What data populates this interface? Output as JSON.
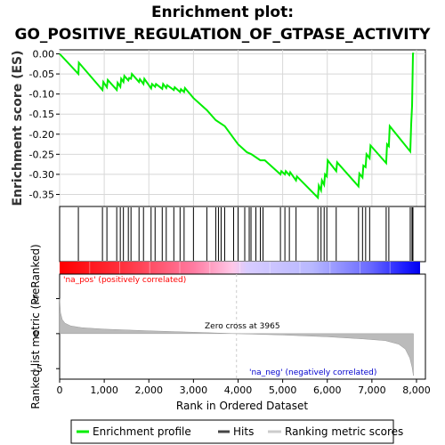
{
  "chart_data": {
    "type": "line",
    "title_line1": "Enrichment plot:",
    "title_line2": "GO_POSITIVE_REGULATION_OF_GTPASE_ACTIVITY",
    "es_panel": {
      "ylabel": "Enrichment score (ES)",
      "ylim": [
        -0.38,
        0.01
      ],
      "yticks": [
        0.0,
        -0.05,
        -0.1,
        -0.15,
        -0.2,
        -0.25,
        -0.3,
        -0.35
      ],
      "ytick_labels": [
        "0.00",
        "-0.05",
        "-0.10",
        "-0.15",
        "-0.20",
        "-0.25",
        "-0.30",
        "-0.35"
      ],
      "grid": true,
      "line_color": "#00ee00",
      "series": [
        {
          "x": [
            0,
            420,
            430,
            960,
            980,
            1060,
            1080,
            1280,
            1300,
            1360,
            1380,
            1430,
            1450,
            1540,
            1560,
            1600,
            1620,
            1780,
            1800,
            1880,
            1900,
            2050,
            2070,
            2140,
            2160,
            2300,
            2320,
            2390,
            2410,
            2560,
            2580,
            2700,
            2720,
            2790,
            2810,
            3000,
            3300,
            3500,
            3700,
            3900,
            4000,
            4200,
            4300,
            4500,
            4600,
            4800,
            4950,
            4970,
            5050,
            5070,
            5150,
            5170,
            5300,
            5320,
            5790,
            5810,
            5860,
            5880,
            5930,
            5950,
            5990,
            6010,
            6200,
            6220,
            6700,
            6720,
            6790,
            6810,
            6860,
            6880,
            6950,
            6970,
            7320,
            7340,
            7380,
            7400,
            7860,
            7880,
            7900,
            7920,
            7930
          ],
          "y": [
            0.0,
            -0.05,
            -0.022,
            -0.09,
            -0.07,
            -0.083,
            -0.065,
            -0.09,
            -0.072,
            -0.082,
            -0.062,
            -0.07,
            -0.055,
            -0.066,
            -0.06,
            -0.062,
            -0.05,
            -0.07,
            -0.063,
            -0.075,
            -0.062,
            -0.086,
            -0.075,
            -0.082,
            -0.075,
            -0.087,
            -0.075,
            -0.085,
            -0.078,
            -0.09,
            -0.083,
            -0.095,
            -0.088,
            -0.095,
            -0.085,
            -0.11,
            -0.14,
            -0.165,
            -0.18,
            -0.21,
            -0.225,
            -0.245,
            -0.25,
            -0.265,
            -0.265,
            -0.285,
            -0.3,
            -0.292,
            -0.3,
            -0.292,
            -0.302,
            -0.295,
            -0.315,
            -0.305,
            -0.358,
            -0.328,
            -0.34,
            -0.315,
            -0.326,
            -0.3,
            -0.305,
            -0.265,
            -0.292,
            -0.27,
            -0.33,
            -0.298,
            -0.308,
            -0.278,
            -0.282,
            -0.25,
            -0.26,
            -0.228,
            -0.272,
            -0.225,
            -0.23,
            -0.18,
            -0.243,
            -0.175,
            -0.13,
            0.0,
            0.003
          ]
        }
      ]
    },
    "hits": [
      420,
      960,
      1060,
      1280,
      1360,
      1430,
      1540,
      1600,
      1780,
      1880,
      2050,
      2140,
      2300,
      2390,
      2560,
      2700,
      2790,
      3000,
      3300,
      3500,
      3560,
      3620,
      3700,
      3900,
      4000,
      4150,
      4250,
      4290,
      4400,
      4500,
      4560,
      4950,
      5050,
      5150,
      5300,
      5790,
      5860,
      5930,
      5990,
      6200,
      6700,
      6790,
      6860,
      6950,
      7320,
      7380,
      7860,
      7900,
      7920
    ],
    "rank_panel": {
      "ylabel": "Ranked list metric (PreRanked)",
      "ylim": [
        -6.5,
        8.5
      ],
      "yticks": [
        5,
        0,
        -5
      ],
      "ytick_labels": [
        "5",
        "0",
        "-5"
      ],
      "xlabel": "Rank in Ordered Dataset",
      "xlim": [
        0,
        8200
      ],
      "xticks": [
        0,
        1000,
        2000,
        3000,
        4000,
        5000,
        6000,
        7000,
        8000
      ],
      "xtick_labels": [
        "0",
        "1,000",
        "2,000",
        "3,000",
        "4,000",
        "5,000",
        "6,000",
        "7,000",
        "8,000"
      ],
      "zero_cross": 3965,
      "zero_cross_label": "Zero cross at 3965",
      "pos_label": "'na_pos' (positively correlated)",
      "neg_label": "'na_neg' (negatively correlated)",
      "pos_color": "#ff0000",
      "neg_color": "#0000ff",
      "metric_x": [
        0,
        20,
        60,
        120,
        250,
        500,
        1000,
        2000,
        3000,
        3965,
        5000,
        6000,
        6800,
        7300,
        7600,
        7750,
        7850,
        7900,
        7930
      ],
      "metric_y": [
        5.0,
        3.0,
        2.0,
        1.5,
        1.1,
        0.85,
        0.65,
        0.4,
        0.2,
        0.0,
        -0.2,
        -0.45,
        -0.75,
        -1.0,
        -1.5,
        -2.2,
        -3.5,
        -4.8,
        -6.0
      ]
    },
    "legend": [
      "Enrichment profile",
      "Hits",
      "Ranking metric scores"
    ]
  }
}
